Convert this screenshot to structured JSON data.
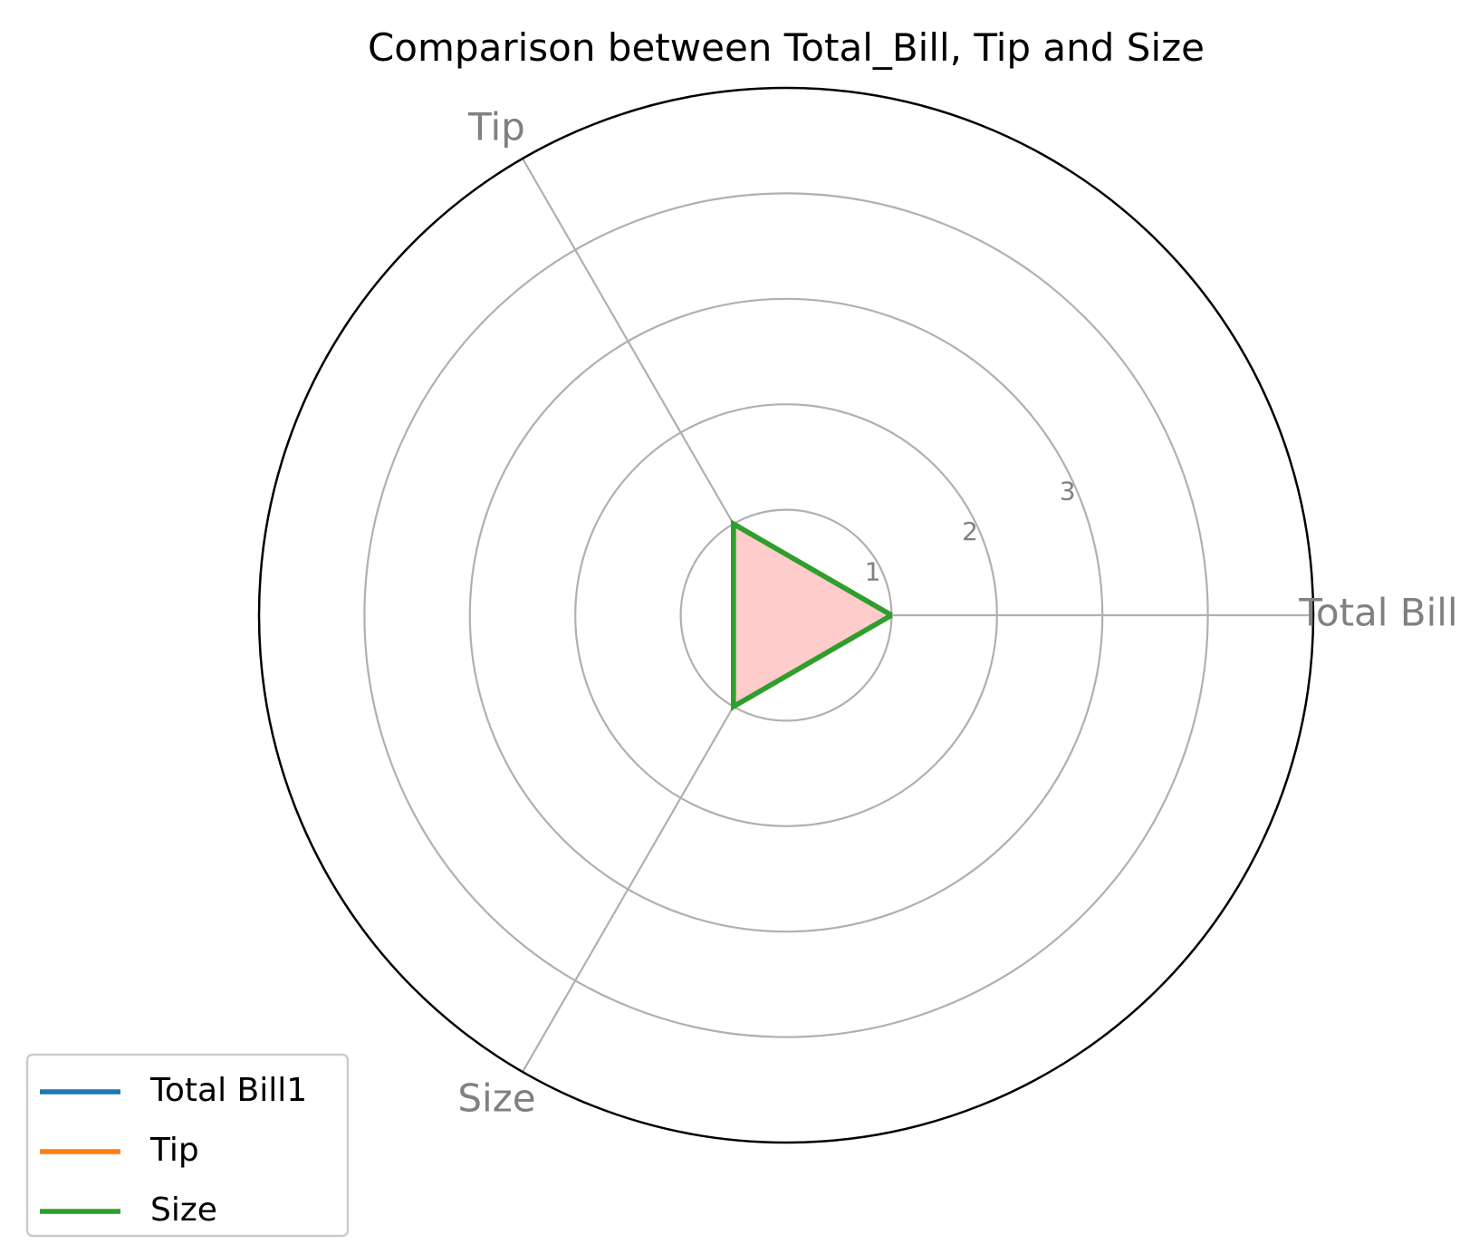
{
  "chart_data": {
    "type": "radar",
    "title": "Comparison between Total_Bill, Tip and Size",
    "categories": [
      "Total Bill",
      "Tip",
      "Size"
    ],
    "radial_ticks": [
      1,
      2,
      3
    ],
    "rlim": [
      0,
      5
    ],
    "grid": true,
    "legend_position": "lower-left",
    "fill_color": "#ffcccc",
    "series": [
      {
        "name": "Total Bill1",
        "values": [
          1,
          1,
          1
        ],
        "color": "#1f77b4"
      },
      {
        "name": "Tip",
        "values": [
          1,
          1,
          1
        ],
        "color": "#ff7f0e"
      },
      {
        "name": "Size",
        "values": [
          1,
          1,
          1
        ],
        "color": "#2ca02c"
      }
    ]
  }
}
